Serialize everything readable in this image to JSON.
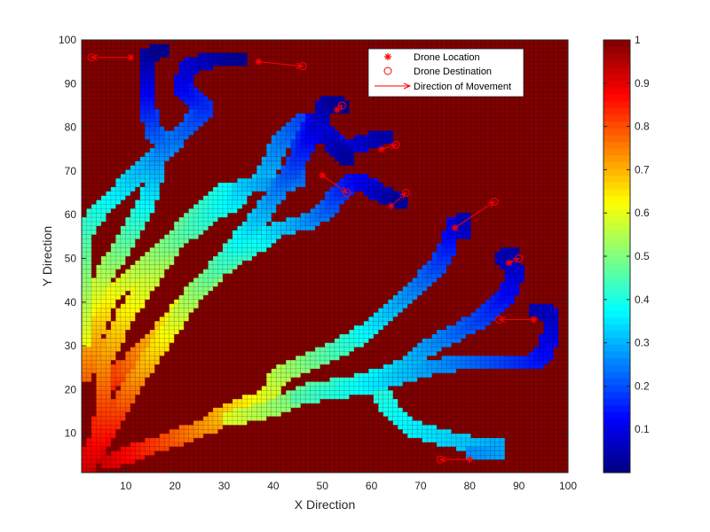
{
  "chart_data": {
    "type": "heatmap",
    "xlabel": "X Direction",
    "ylabel": "Y Direction",
    "xlim": [
      1,
      100
    ],
    "ylim": [
      1,
      100
    ],
    "xticks": [
      10,
      20,
      30,
      40,
      50,
      60,
      70,
      80,
      90,
      100
    ],
    "yticks": [
      10,
      20,
      30,
      40,
      50,
      60,
      70,
      80,
      90,
      100
    ],
    "grid_resolution": 100,
    "background_value": 1,
    "colormap": "jet",
    "colorbar": {
      "limits": [
        0,
        1
      ],
      "ticks": [
        0.1,
        0.2,
        0.3,
        0.4,
        0.5,
        0.6,
        0.7,
        0.8,
        0.9,
        1
      ],
      "tick_labels": [
        "0.1",
        "0.2",
        "0.3",
        "0.4",
        "0.5",
        "0.6",
        "0.7",
        "0.8",
        "0.9",
        "1"
      ]
    },
    "legend": {
      "placement": "top-right inside axes",
      "entries": [
        {
          "label": "Drone Location",
          "marker": "asterisk",
          "color": "#ff0000"
        },
        {
          "label": "Drone Destination",
          "marker": "circle",
          "color": "#ff0000"
        },
        {
          "label": "Direction of Movement",
          "marker": "arrow",
          "color": "#ff0000"
        }
      ]
    },
    "paths": [
      {
        "points": [
          [
            0,
            0
          ],
          [
            2,
            4
          ],
          [
            5,
            10
          ],
          [
            10,
            20
          ],
          [
            16,
            30
          ],
          [
            22,
            40
          ],
          [
            30,
            50
          ],
          [
            37,
            60
          ],
          [
            43,
            70
          ],
          [
            48,
            80
          ],
          [
            50,
            85
          ],
          [
            53,
            84
          ]
        ],
        "start_value": 0.96,
        "end_value": 0.02
      },
      {
        "points": [
          [
            0,
            0
          ],
          [
            3,
            8
          ],
          [
            4,
            15
          ],
          [
            4,
            25
          ],
          [
            8,
            35
          ],
          [
            14,
            45
          ],
          [
            20,
            55
          ],
          [
            26,
            62
          ],
          [
            30,
            65
          ],
          [
            36,
            66
          ],
          [
            38,
            70
          ],
          [
            40,
            75
          ],
          [
            45,
            81
          ],
          [
            50,
            78
          ],
          [
            53,
            74
          ],
          [
            58,
            76
          ],
          [
            62,
            77
          ]
        ],
        "start_value": 0.93,
        "end_value": 0.05
      },
      {
        "points": [
          [
            0,
            30
          ],
          [
            0,
            45
          ],
          [
            0,
            55
          ],
          [
            3,
            60
          ],
          [
            8,
            65
          ],
          [
            12,
            70
          ],
          [
            15,
            72
          ],
          [
            20,
            78
          ],
          [
            22,
            80
          ],
          [
            25,
            84
          ],
          [
            20,
            88
          ],
          [
            21,
            93
          ],
          [
            26,
            95
          ],
          [
            32,
            95
          ]
        ],
        "start_value": 0.62,
        "end_value": 0.02
      },
      {
        "points": [
          [
            0,
            22
          ],
          [
            3,
            35
          ],
          [
            5,
            40
          ],
          [
            10,
            45
          ],
          [
            15,
            50
          ],
          [
            21,
            55
          ],
          [
            27,
            60
          ],
          [
            31,
            62
          ],
          [
            33,
            66
          ],
          [
            40,
            66
          ],
          [
            44,
            67
          ],
          [
            44,
            74
          ],
          [
            46,
            78
          ],
          [
            47,
            81
          ],
          [
            51,
            76
          ],
          [
            54,
            72
          ]
        ],
        "start_value": 0.78,
        "end_value": 0.04
      },
      {
        "points": [
          [
            0,
            35
          ],
          [
            4,
            45
          ],
          [
            8,
            52
          ],
          [
            12,
            60
          ],
          [
            14,
            65
          ],
          [
            15,
            70
          ],
          [
            16,
            76
          ],
          [
            14,
            79
          ],
          [
            13,
            85
          ],
          [
            13,
            90
          ],
          [
            13,
            96
          ],
          [
            16,
            97
          ]
        ],
        "start_value": 0.66,
        "end_value": 0.02
      },
      {
        "points": [
          [
            4,
            20
          ],
          [
            10,
            25
          ],
          [
            16,
            32
          ],
          [
            22,
            40
          ],
          [
            28,
            47
          ],
          [
            35,
            52
          ],
          [
            40,
            56
          ],
          [
            45,
            57
          ],
          [
            50,
            60
          ],
          [
            52,
            64
          ],
          [
            56,
            67
          ],
          [
            61,
            64
          ],
          [
            65,
            62
          ]
        ],
        "start_value": 0.85,
        "end_value": 0.03
      },
      {
        "points": [
          [
            5,
            2
          ],
          [
            15,
            6
          ],
          [
            25,
            10
          ],
          [
            30,
            14
          ],
          [
            38,
            17
          ],
          [
            40,
            22
          ],
          [
            46,
            25
          ],
          [
            52,
            28
          ],
          [
            58,
            32
          ],
          [
            63,
            37
          ],
          [
            66,
            40
          ],
          [
            70,
            44
          ],
          [
            73,
            48
          ],
          [
            75,
            52
          ],
          [
            76,
            57
          ],
          [
            78,
            55
          ],
          [
            78,
            58
          ]
        ],
        "start_value": 0.92,
        "end_value": 0.06
      },
      {
        "points": [
          [
            30,
            12
          ],
          [
            38,
            14
          ],
          [
            44,
            17
          ],
          [
            48,
            19
          ],
          [
            55,
            20
          ],
          [
            62,
            22
          ],
          [
            66,
            24
          ],
          [
            70,
            28
          ],
          [
            75,
            31
          ],
          [
            80,
            34
          ],
          [
            84,
            37
          ],
          [
            87,
            41
          ],
          [
            89,
            46
          ],
          [
            86,
            49
          ],
          [
            88,
            50
          ]
        ],
        "start_value": 0.6,
        "end_value": 0.05
      },
      {
        "points": [
          [
            44,
            17
          ],
          [
            50,
            18
          ],
          [
            56,
            19
          ],
          [
            60,
            20
          ],
          [
            66,
            22
          ],
          [
            72,
            24
          ],
          [
            78,
            25
          ],
          [
            85,
            25
          ],
          [
            90,
            25
          ],
          [
            93,
            25
          ],
          [
            95,
            28
          ],
          [
            96,
            32
          ],
          [
            96,
            36
          ],
          [
            93,
            37
          ]
        ],
        "start_value": 0.46,
        "end_value": 0.06
      },
      {
        "points": [
          [
            60,
            20
          ],
          [
            63,
            14
          ],
          [
            67,
            10
          ],
          [
            72,
            8
          ],
          [
            80,
            6
          ],
          [
            85,
            6
          ],
          [
            85,
            4
          ],
          [
            80,
            4
          ]
        ],
        "start_value": 0.42,
        "end_value": 0.27
      }
    ],
    "drones": [
      {
        "location": [
          11,
          96
        ],
        "destination": [
          3,
          96
        ]
      },
      {
        "location": [
          37,
          95
        ],
        "destination": [
          46,
          94
        ]
      },
      {
        "location": [
          53,
          84
        ],
        "destination": [
          54,
          85
        ]
      },
      {
        "location": [
          62,
          75
        ],
        "destination": [
          65,
          76
        ]
      },
      {
        "location": [
          50,
          69
        ],
        "destination": [
          55,
          65
        ]
      },
      {
        "location": [
          64,
          62
        ],
        "destination": [
          67,
          65
        ]
      },
      {
        "location": [
          77,
          57
        ],
        "destination": [
          85,
          63
        ]
      },
      {
        "location": [
          88,
          49
        ],
        "destination": [
          90,
          50
        ]
      },
      {
        "location": [
          93,
          36
        ],
        "destination": [
          86,
          36
        ]
      },
      {
        "location": [
          80,
          4
        ],
        "destination": [
          74,
          4
        ]
      }
    ]
  }
}
